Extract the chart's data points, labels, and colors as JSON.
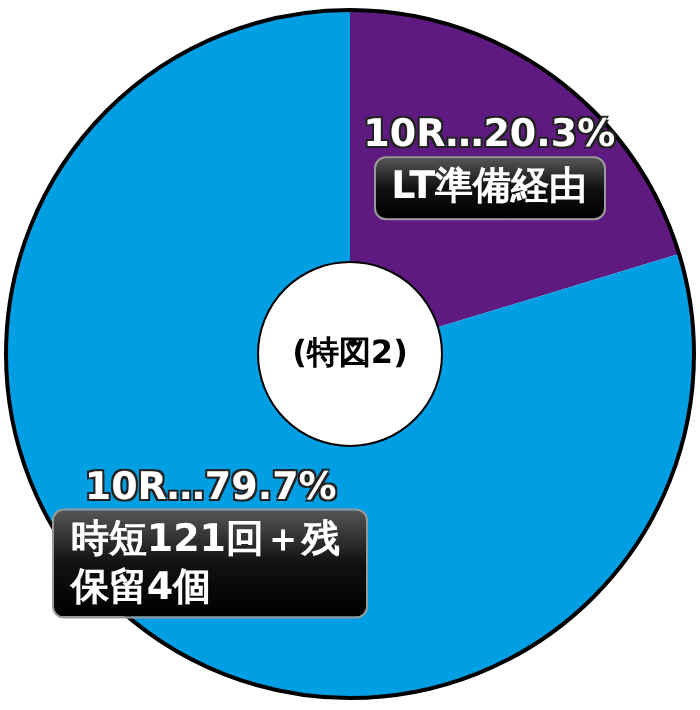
{
  "chart_data": {
    "type": "donut",
    "title": "(特図2)",
    "categories": [
      "LT準備経由",
      "時短121回＋残保留4個"
    ],
    "values": [
      20.3,
      79.7
    ],
    "value_labels": [
      "10R…20.3%",
      "10R…79.7%"
    ],
    "colors": [
      "#5e1a80",
      "#009fe3"
    ]
  }
}
